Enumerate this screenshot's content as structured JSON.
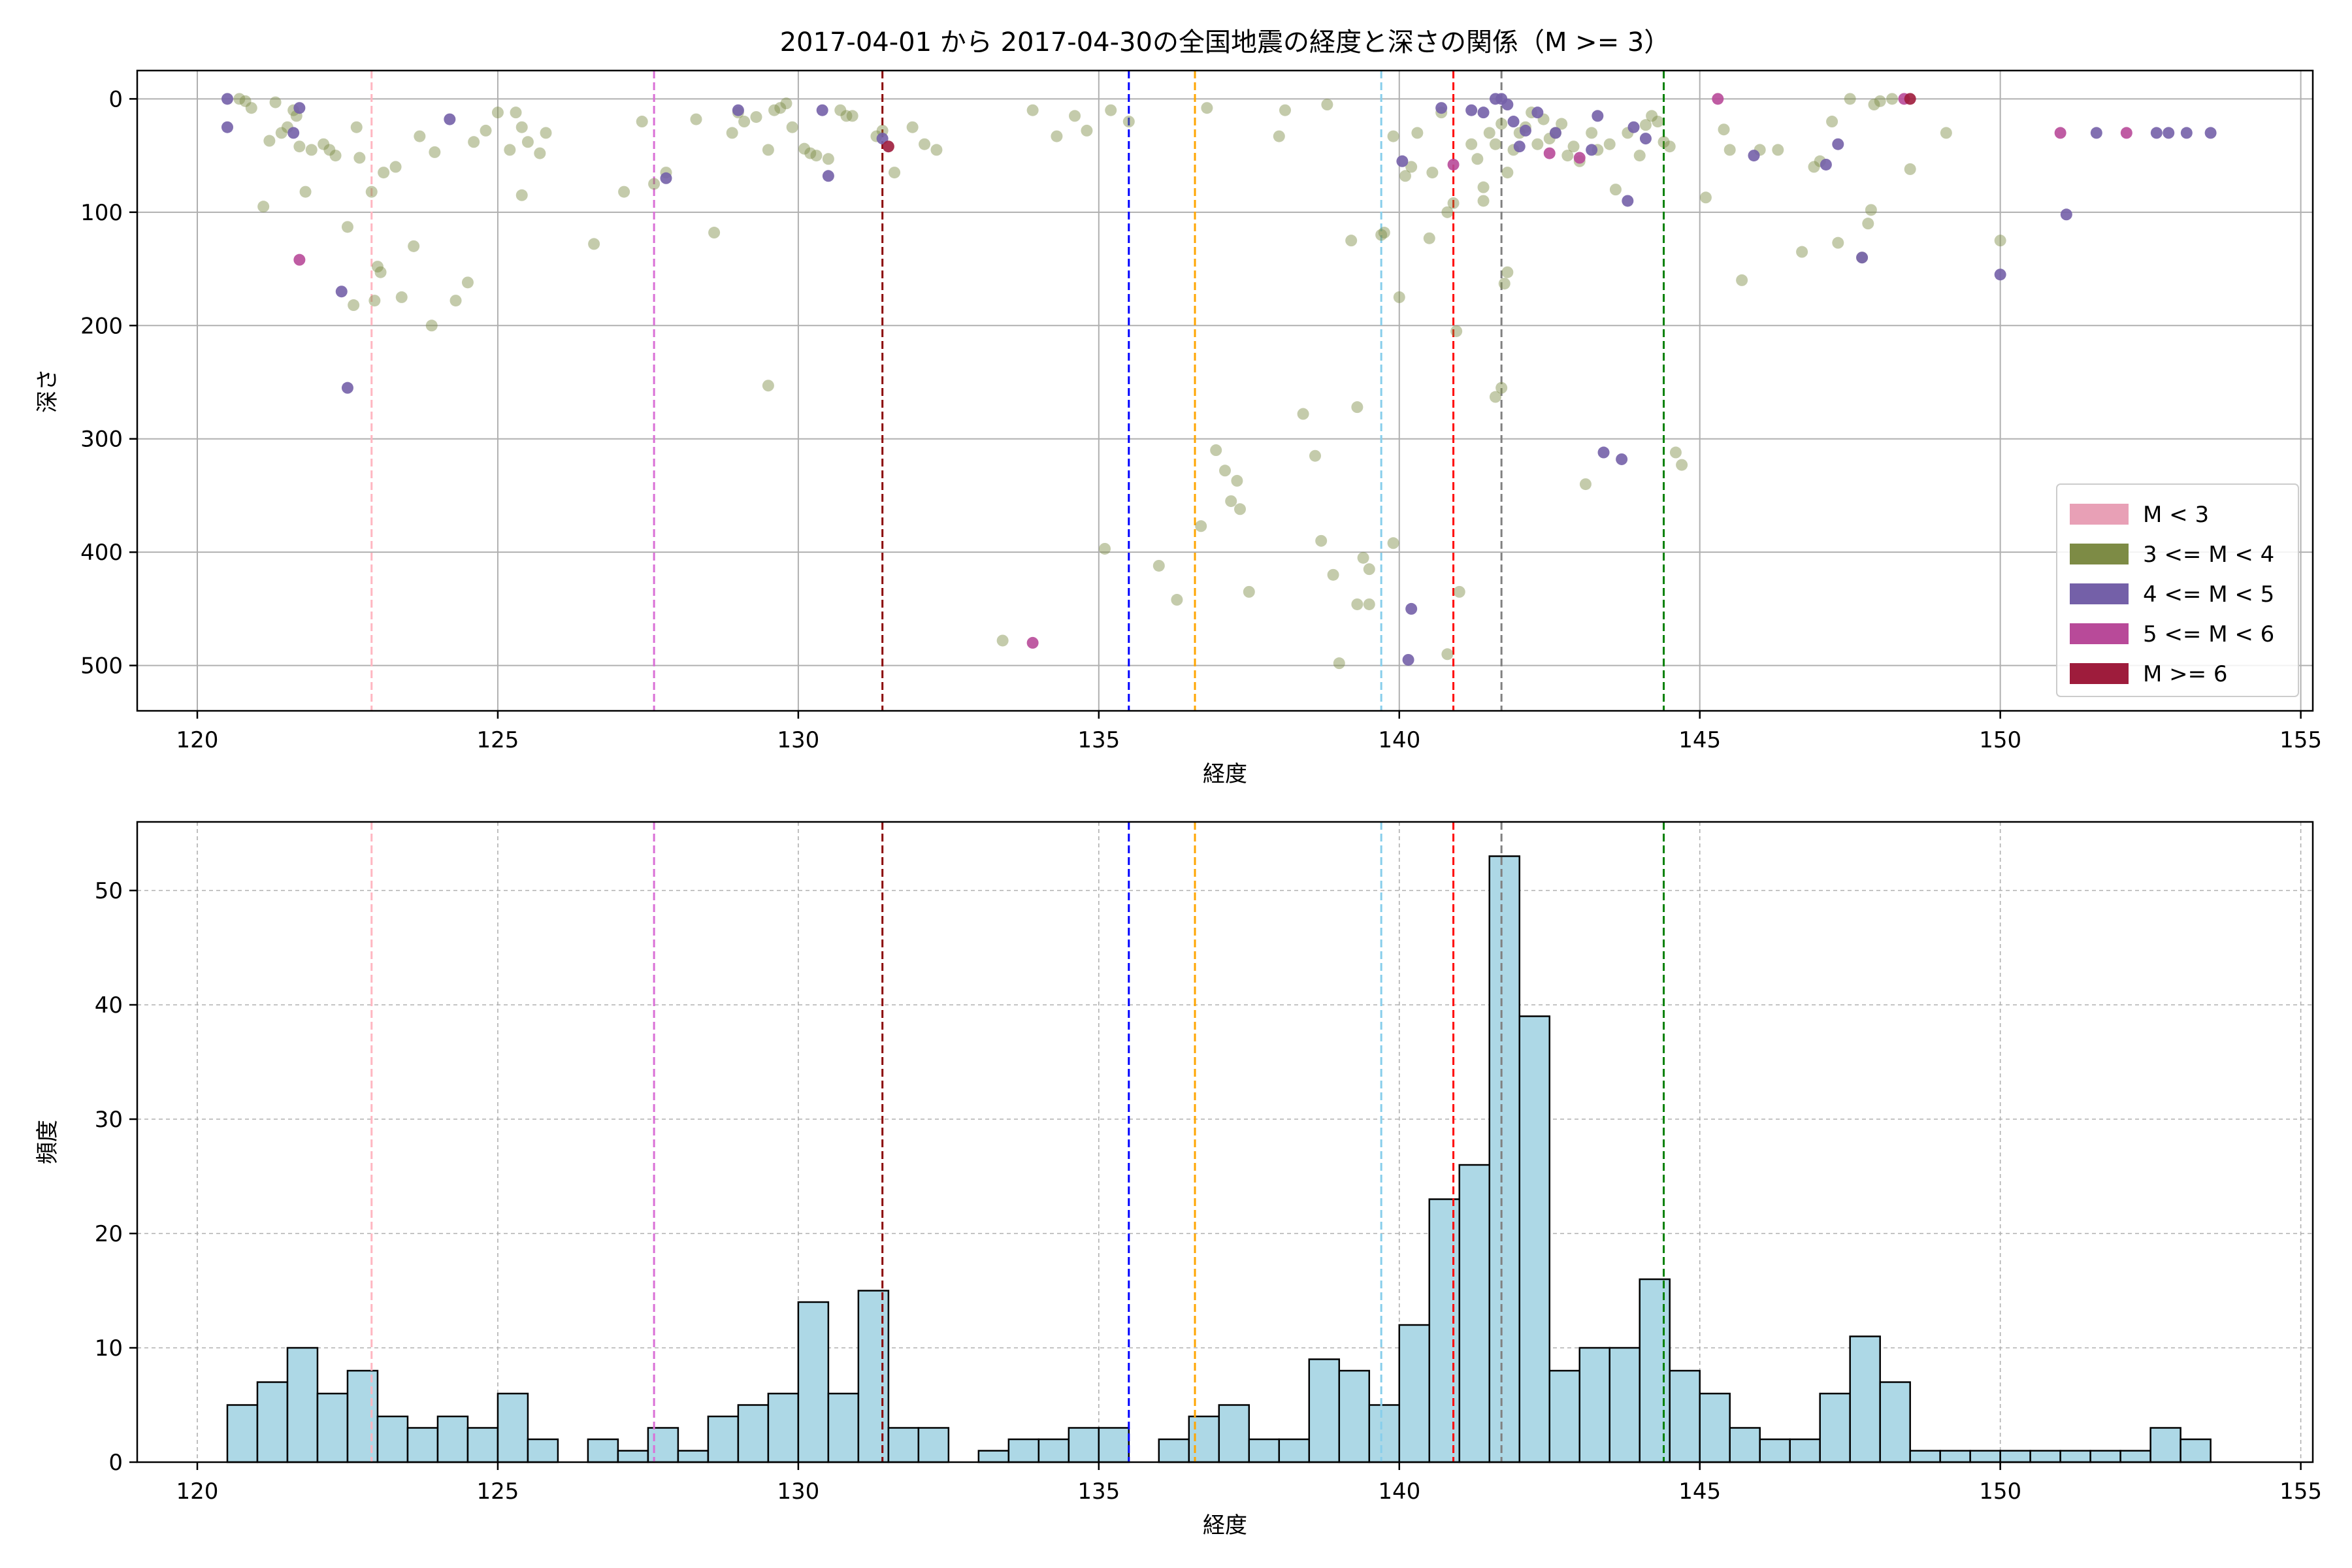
{
  "title": "2017-04-01 から 2017-04-30の全国地震の経度と深さの関係（M >= 3）",
  "chart_data": [
    {
      "type": "scatter",
      "xlabel": "経度",
      "ylabel": "深さ",
      "xlim": [
        119,
        155.2
      ],
      "ylim": [
        540,
        -25
      ],
      "y_inverted": true,
      "grid": true,
      "xticks": [
        120,
        125,
        130,
        135,
        140,
        145,
        150,
        155
      ],
      "yticks": [
        0,
        100,
        200,
        300,
        400,
        500
      ],
      "legend_position": "lower-right",
      "legend": [
        {
          "label": "M < 3",
          "color": "#e8a0b6"
        },
        {
          "label": "3 <= M < 4",
          "color": "#7d8b45"
        },
        {
          "label": "4 <= M < 5",
          "color": "#7460a8"
        },
        {
          "label": "5 <= M < 6",
          "color": "#b84a99"
        },
        {
          "label": "M >= 6",
          "color": "#9e1c3c"
        }
      ],
      "reference_lines": [
        {
          "x": 122.9,
          "color": "#ffb6c1"
        },
        {
          "x": 127.6,
          "color": "#da70d6"
        },
        {
          "x": 131.4,
          "color": "#8b0000"
        },
        {
          "x": 135.5,
          "color": "#0000ff"
        },
        {
          "x": 136.6,
          "color": "#ffa500"
        },
        {
          "x": 139.7,
          "color": "#87ceeb"
        },
        {
          "x": 140.9,
          "color": "#ff0000"
        },
        {
          "x": 141.7,
          "color": "#808080"
        },
        {
          "x": 144.4,
          "color": "#008000"
        }
      ],
      "series": [
        {
          "color": "#7d8b45",
          "points": [
            [
              120.7,
              0
            ],
            [
              120.8,
              2
            ],
            [
              120.9,
              8
            ],
            [
              121.1,
              95
            ],
            [
              121.2,
              37
            ],
            [
              121.3,
              3
            ],
            [
              121.4,
              30
            ],
            [
              121.5,
              25
            ],
            [
              121.6,
              10
            ],
            [
              121.65,
              15
            ],
            [
              121.8,
              82
            ],
            [
              121.9,
              45
            ],
            [
              121.7,
              42
            ],
            [
              122.1,
              40
            ],
            [
              122.2,
              45
            ],
            [
              122.3,
              50
            ],
            [
              122.5,
              113
            ],
            [
              122.6,
              182
            ],
            [
              122.65,
              25
            ],
            [
              122.7,
              52
            ],
            [
              122.9,
              82
            ],
            [
              122.95,
              178
            ],
            [
              123.0,
              148
            ],
            [
              123.05,
              153
            ],
            [
              123.1,
              65
            ],
            [
              123.3,
              60
            ],
            [
              123.4,
              175
            ],
            [
              123.6,
              130
            ],
            [
              123.7,
              33
            ],
            [
              123.9,
              200
            ],
            [
              123.95,
              47
            ],
            [
              124.3,
              178
            ],
            [
              124.5,
              162
            ],
            [
              124.6,
              38
            ],
            [
              124.8,
              28
            ],
            [
              125.0,
              12
            ],
            [
              125.2,
              45
            ],
            [
              125.3,
              12
            ],
            [
              125.4,
              85
            ],
            [
              125.4,
              25
            ],
            [
              125.5,
              38
            ],
            [
              125.7,
              48
            ],
            [
              125.8,
              30
            ],
            [
              126.6,
              128
            ],
            [
              127.1,
              82
            ],
            [
              127.4,
              20
            ],
            [
              127.6,
              75
            ],
            [
              127.8,
              65
            ],
            [
              128.3,
              18
            ],
            [
              128.6,
              118
            ],
            [
              128.9,
              30
            ],
            [
              129.0,
              12
            ],
            [
              129.1,
              20
            ],
            [
              129.3,
              16
            ],
            [
              129.5,
              45
            ],
            [
              129.5,
              253
            ],
            [
              129.6,
              10
            ],
            [
              129.7,
              8
            ],
            [
              129.8,
              4
            ],
            [
              129.9,
              25
            ],
            [
              130.1,
              44
            ],
            [
              130.2,
              48
            ],
            [
              130.3,
              50
            ],
            [
              130.5,
              53
            ],
            [
              130.7,
              10
            ],
            [
              130.8,
              15
            ],
            [
              130.9,
              15
            ],
            [
              131.3,
              33
            ],
            [
              131.4,
              28
            ],
            [
              131.6,
              65
            ],
            [
              131.9,
              25
            ],
            [
              132.1,
              40
            ],
            [
              132.3,
              45
            ],
            [
              133.4,
              478
            ],
            [
              133.9,
              10
            ],
            [
              134.3,
              33
            ],
            [
              134.6,
              15
            ],
            [
              134.8,
              28
            ],
            [
              135.1,
              397
            ],
            [
              135.2,
              10
            ],
            [
              135.5,
              20
            ],
            [
              136.0,
              412
            ],
            [
              136.3,
              442
            ],
            [
              136.7,
              377
            ],
            [
              136.8,
              8
            ],
            [
              136.95,
              310
            ],
            [
              137.1,
              328
            ],
            [
              137.2,
              355
            ],
            [
              137.3,
              337
            ],
            [
              137.35,
              362
            ],
            [
              137.5,
              435
            ],
            [
              138.0,
              33
            ],
            [
              138.1,
              10
            ],
            [
              138.4,
              278
            ],
            [
              138.6,
              315
            ],
            [
              138.8,
              5
            ],
            [
              138.7,
              390
            ],
            [
              138.9,
              420
            ],
            [
              139.0,
              498
            ],
            [
              139.2,
              125
            ],
            [
              139.3,
              272
            ],
            [
              139.3,
              446
            ],
            [
              139.4,
              405
            ],
            [
              139.5,
              415
            ],
            [
              139.5,
              446
            ],
            [
              139.7,
              120
            ],
            [
              139.75,
              118
            ],
            [
              139.9,
              392
            ],
            [
              139.9,
              33
            ],
            [
              140.0,
              175
            ],
            [
              140.1,
              68
            ],
            [
              140.2,
              60
            ],
            [
              140.3,
              30
            ],
            [
              140.5,
              123
            ],
            [
              140.55,
              65
            ],
            [
              140.7,
              12
            ],
            [
              140.8,
              100
            ],
            [
              140.8,
              490
            ],
            [
              140.9,
              92
            ],
            [
              140.95,
              205
            ],
            [
              141.0,
              435
            ],
            [
              141.2,
              40
            ],
            [
              141.3,
              53
            ],
            [
              141.4,
              78
            ],
            [
              141.4,
              90
            ],
            [
              141.6,
              263
            ],
            [
              141.7,
              255
            ],
            [
              141.75,
              163
            ],
            [
              141.8,
              153
            ],
            [
              141.6,
              40
            ],
            [
              141.5,
              30
            ],
            [
              141.7,
              22
            ],
            [
              141.8,
              65
            ],
            [
              141.9,
              45
            ],
            [
              142.0,
              30
            ],
            [
              142.1,
              25
            ],
            [
              142.2,
              12
            ],
            [
              142.3,
              40
            ],
            [
              142.4,
              18
            ],
            [
              142.5,
              35
            ],
            [
              142.6,
              30
            ],
            [
              142.7,
              22
            ],
            [
              142.8,
              50
            ],
            [
              142.9,
              42
            ],
            [
              143.0,
              55
            ],
            [
              143.2,
              30
            ],
            [
              143.1,
              340
            ],
            [
              143.3,
              45
            ],
            [
              143.5,
              40
            ],
            [
              143.6,
              80
            ],
            [
              143.8,
              30
            ],
            [
              144.0,
              50
            ],
            [
              144.1,
              23
            ],
            [
              144.2,
              15
            ],
            [
              144.3,
              20
            ],
            [
              144.4,
              38
            ],
            [
              144.5,
              42
            ],
            [
              144.6,
              312
            ],
            [
              144.7,
              323
            ],
            [
              145.1,
              87
            ],
            [
              145.4,
              27
            ],
            [
              145.5,
              45
            ],
            [
              145.7,
              160
            ],
            [
              146.0,
              45
            ],
            [
              146.3,
              45
            ],
            [
              146.7,
              135
            ],
            [
              146.9,
              60
            ],
            [
              147.0,
              55
            ],
            [
              147.2,
              20
            ],
            [
              147.3,
              127
            ],
            [
              147.5,
              0
            ],
            [
              147.7,
              140
            ],
            [
              147.8,
              110
            ],
            [
              147.85,
              98
            ],
            [
              147.9,
              5
            ],
            [
              148.0,
              2
            ],
            [
              148.2,
              0
            ],
            [
              148.5,
              62
            ],
            [
              149.1,
              30
            ],
            [
              150.0,
              125
            ]
          ]
        },
        {
          "color": "#7460a8",
          "points": [
            [
              120.5,
              0
            ],
            [
              120.5,
              25
            ],
            [
              121.6,
              30
            ],
            [
              121.7,
              8
            ],
            [
              122.4,
              170
            ],
            [
              122.5,
              255
            ],
            [
              124.2,
              18
            ],
            [
              127.8,
              70
            ],
            [
              129.0,
              10
            ],
            [
              130.4,
              10
            ],
            [
              130.5,
              68
            ],
            [
              131.4,
              35
            ],
            [
              140.05,
              55
            ],
            [
              140.15,
              495
            ],
            [
              140.2,
              450
            ],
            [
              140.7,
              8
            ],
            [
              141.2,
              10
            ],
            [
              141.4,
              12
            ],
            [
              141.6,
              0
            ],
            [
              141.7,
              0
            ],
            [
              141.8,
              5
            ],
            [
              141.9,
              20
            ],
            [
              142.0,
              42
            ],
            [
              142.1,
              28
            ],
            [
              142.3,
              12
            ],
            [
              142.6,
              30
            ],
            [
              143.2,
              45
            ],
            [
              143.3,
              15
            ],
            [
              143.4,
              312
            ],
            [
              143.7,
              318
            ],
            [
              143.8,
              90
            ],
            [
              143.9,
              25
            ],
            [
              144.1,
              35
            ],
            [
              145.9,
              50
            ],
            [
              147.1,
              58
            ],
            [
              147.3,
              40
            ],
            [
              147.7,
              140
            ],
            [
              150.0,
              155
            ],
            [
              151.1,
              102
            ],
            [
              151.6,
              30
            ],
            [
              152.6,
              30
            ],
            [
              152.8,
              30
            ],
            [
              153.1,
              30
            ],
            [
              153.5,
              30
            ]
          ]
        },
        {
          "color": "#b84a99",
          "points": [
            [
              121.7,
              142
            ],
            [
              133.9,
              480
            ],
            [
              140.9,
              58
            ],
            [
              142.5,
              48
            ],
            [
              143.0,
              52
            ],
            [
              145.3,
              0
            ],
            [
              148.4,
              0
            ],
            [
              151.0,
              30
            ],
            [
              152.1,
              30
            ]
          ]
        },
        {
          "color": "#9e1c3c",
          "points": [
            [
              131.5,
              42
            ],
            [
              148.5,
              0
            ]
          ]
        }
      ]
    },
    {
      "type": "bar",
      "chart": "histogram",
      "xlabel": "経度",
      "ylabel": "頻度",
      "xlim": [
        119,
        155.2
      ],
      "ylim": [
        0,
        56
      ],
      "grid": true,
      "xticks": [
        120,
        125,
        130,
        135,
        140,
        145,
        150,
        155
      ],
      "yticks": [
        0,
        10,
        20,
        30,
        40,
        50
      ],
      "bar_color": "#add8e6",
      "edge_color": "#000000",
      "bin_start": 120.5,
      "bin_width": 0.5,
      "values": [
        5,
        7,
        10,
        6,
        8,
        4,
        3,
        4,
        3,
        6,
        2,
        0,
        2,
        1,
        3,
        1,
        4,
        5,
        6,
        14,
        6,
        15,
        3,
        3,
        0,
        1,
        2,
        2,
        3,
        3,
        0,
        2,
        4,
        5,
        2,
        2,
        9,
        8,
        5,
        12,
        23,
        26,
        53,
        39,
        8,
        10,
        10,
        16,
        8,
        6,
        3,
        2,
        2,
        6,
        11,
        7,
        1,
        1,
        1,
        1,
        1,
        1,
        1,
        1,
        3,
        2
      ],
      "reference_lines": [
        {
          "x": 122.9,
          "color": "#ffb6c1"
        },
        {
          "x": 127.6,
          "color": "#da70d6"
        },
        {
          "x": 131.4,
          "color": "#8b0000"
        },
        {
          "x": 135.5,
          "color": "#0000ff"
        },
        {
          "x": 136.6,
          "color": "#ffa500"
        },
        {
          "x": 139.7,
          "color": "#87ceeb"
        },
        {
          "x": 140.9,
          "color": "#ff0000"
        },
        {
          "x": 141.7,
          "color": "#808080"
        },
        {
          "x": 144.4,
          "color": "#008000"
        }
      ]
    }
  ]
}
